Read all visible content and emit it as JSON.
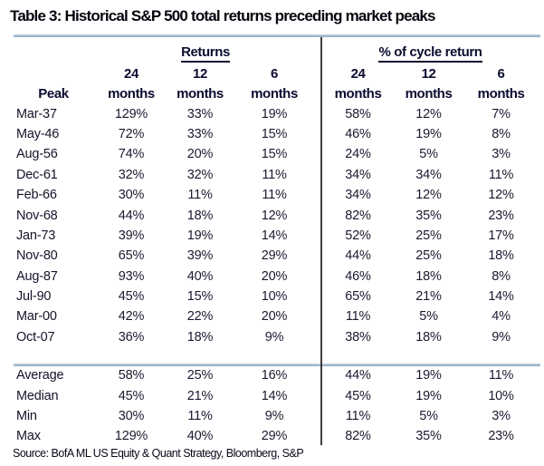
{
  "header": {
    "title": "Table 3: Historical S&P 500 total returns preceding market peaks"
  },
  "table": {
    "group_left": "Returns",
    "group_right": "% of cycle return",
    "peak_label": "Peak",
    "sub_nums": [
      "24",
      "12",
      "6",
      "24",
      "12",
      "6"
    ],
    "unit": "months",
    "rows": [
      [
        "Mar-37",
        "129%",
        "33%",
        "19%",
        "58%",
        "12%",
        "7%"
      ],
      [
        "May-46",
        "72%",
        "33%",
        "15%",
        "46%",
        "19%",
        "8%"
      ],
      [
        "Aug-56",
        "74%",
        "20%",
        "15%",
        "24%",
        "5%",
        "3%"
      ],
      [
        "Dec-61",
        "32%",
        "32%",
        "11%",
        "34%",
        "34%",
        "11%"
      ],
      [
        "Feb-66",
        "30%",
        "11%",
        "11%",
        "34%",
        "12%",
        "12%"
      ],
      [
        "Nov-68",
        "44%",
        "18%",
        "12%",
        "82%",
        "35%",
        "23%"
      ],
      [
        "Jan-73",
        "39%",
        "19%",
        "14%",
        "52%",
        "25%",
        "17%"
      ],
      [
        "Nov-80",
        "65%",
        "39%",
        "29%",
        "44%",
        "25%",
        "18%"
      ],
      [
        "Aug-87",
        "93%",
        "40%",
        "20%",
        "46%",
        "18%",
        "8%"
      ],
      [
        "Jul-90",
        "45%",
        "15%",
        "10%",
        "65%",
        "21%",
        "14%"
      ],
      [
        "Mar-00",
        "42%",
        "22%",
        "20%",
        "11%",
        "5%",
        "4%"
      ],
      [
        "Oct-07",
        "36%",
        "18%",
        "9%",
        "38%",
        "18%",
        "9%"
      ]
    ],
    "summary": [
      [
        "Average",
        "58%",
        "25%",
        "16%",
        "44%",
        "19%",
        "11%"
      ],
      [
        "Median",
        "45%",
        "21%",
        "14%",
        "45%",
        "19%",
        "10%"
      ],
      [
        "Min",
        "30%",
        "11%",
        "9%",
        "11%",
        "5%",
        "3%"
      ],
      [
        "Max",
        "129%",
        "40%",
        "29%",
        "82%",
        "35%",
        "23%"
      ]
    ]
  },
  "footer": {
    "source": "Source: BofA ML US Equity & Quant Strategy, Bloomberg, S&P"
  },
  "colors": {
    "rule_blue_light": "#c4d3e0",
    "rule_blue_dark": "#8fa9c1",
    "divider_dark": "#3d3d3d",
    "text_navy": "#0c0c30"
  }
}
